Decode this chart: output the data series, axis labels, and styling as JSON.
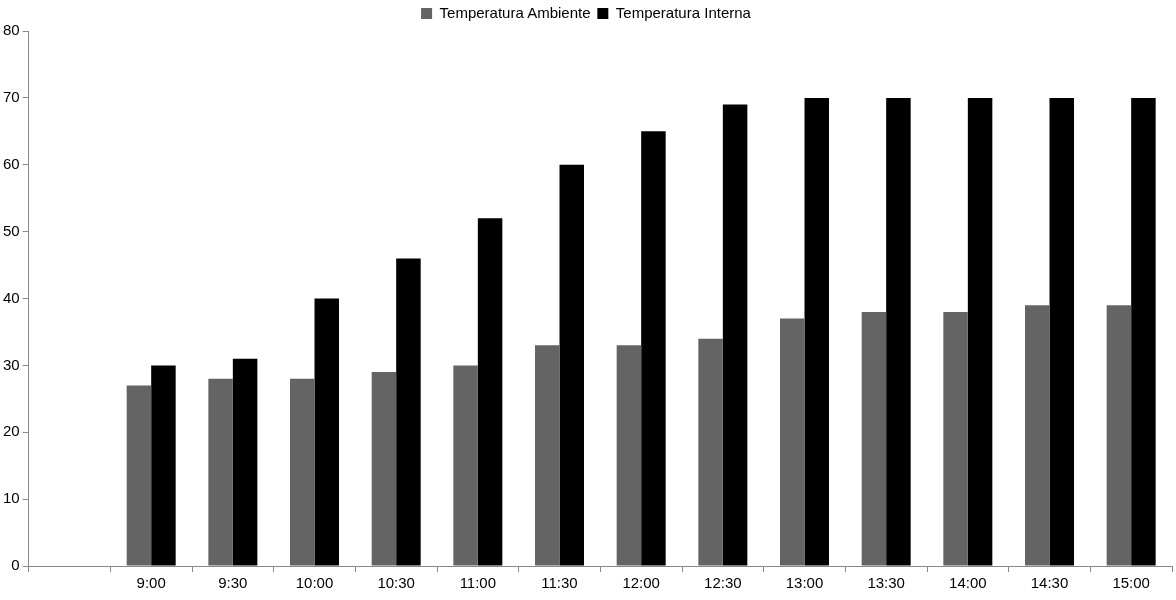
{
  "chart_data": {
    "type": "bar",
    "categories": [
      null,
      "9:00",
      "9:30",
      "10:00",
      "10:30",
      "11:00",
      "11:30",
      "12:00",
      "12:30",
      "13:00",
      "13:30",
      "14:00",
      "14:30",
      "15:00"
    ],
    "series": [
      {
        "name": "Temperatura Ambiente",
        "color": "#646464",
        "values": [
          null,
          27,
          28,
          28,
          29,
          30,
          33,
          33,
          34,
          37,
          38,
          38,
          39,
          39
        ]
      },
      {
        "name": "Temperatura Interna",
        "color": "#000000",
        "values": [
          null,
          30,
          31,
          40,
          46,
          52,
          60,
          65,
          69,
          70,
          70,
          70,
          70,
          70
        ]
      }
    ],
    "ylim": [
      0,
      80
    ],
    "yticks": [
      0,
      10,
      20,
      30,
      40,
      50,
      60,
      70,
      80
    ],
    "grid": false,
    "legend": "top"
  }
}
